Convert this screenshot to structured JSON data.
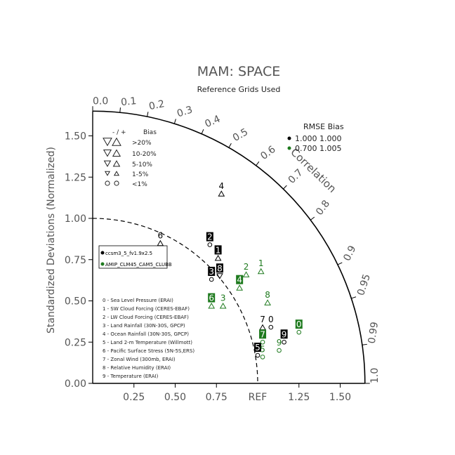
{
  "chart_data": {
    "type": "taylor",
    "title": "MAM: SPACE",
    "subtitle": "Reference Grids Used",
    "ylabel": "Standardized Deviations (Normalized)",
    "arc_label": "Correlation",
    "ref_label": "REF",
    "sd_range": [
      0,
      1.65
    ],
    "x_ticks": [
      "0.25",
      "0.50",
      "0.75",
      "1.25",
      "1.50"
    ],
    "x_tick_values": [
      0.25,
      0.5,
      0.75,
      1.25,
      1.5
    ],
    "y_ticks": [
      "0.00",
      "0.25",
      "0.50",
      "0.75",
      "1.00",
      "1.25",
      "1.50"
    ],
    "y_tick_values": [
      0,
      0.25,
      0.5,
      0.75,
      1.0,
      1.25,
      1.5
    ],
    "corr_ticks": [
      {
        "value": 0.0,
        "label": "0.0"
      },
      {
        "value": 0.1,
        "label": "0.1"
      },
      {
        "value": 0.2,
        "label": "0.2"
      },
      {
        "value": 0.3,
        "label": "0.3"
      },
      {
        "value": 0.4,
        "label": "0.4"
      },
      {
        "value": 0.5,
        "label": "0.5"
      },
      {
        "value": 0.6,
        "label": "0.6"
      },
      {
        "value": 0.7,
        "label": "0.7"
      },
      {
        "value": 0.8,
        "label": "0.8"
      },
      {
        "value": 0.9,
        "label": "0.9"
      },
      {
        "value": 0.95,
        "label": "0.95"
      },
      {
        "value": 0.99,
        "label": "0.99"
      },
      {
        "value": 1.0,
        "label": "1.0"
      }
    ],
    "rmse_bias": {
      "header": "RMSE  Bias",
      "rows": [
        {
          "color": "#000000",
          "text": "1.000 1.000"
        },
        {
          "color": "#1e7a1e",
          "text": "0.700 1.005"
        }
      ]
    },
    "bias_legend": {
      "header_sign": "-  /  +",
      "header_label": "Bias",
      "rows": [
        {
          "size": "large",
          "label": ">20%"
        },
        {
          "size": "medium",
          "label": "10-20%"
        },
        {
          "size": "small",
          "label": "5-10%"
        },
        {
          "size": "tiny",
          "label": "1-5%"
        },
        {
          "size": "circle",
          "label": "<1%"
        }
      ]
    },
    "case_legend": [
      {
        "color": "#000000",
        "name": "ccsm3_5_fv1.9x2.5"
      },
      {
        "color": "#1e7a1e",
        "name": "AMIP_CLM45_CAM5_CLUBB"
      }
    ],
    "variables": [
      "0 - Sea Level Pressure (ERAI)",
      "1 - SW Cloud Forcing (CERES-EBAF)",
      "2 - LW Cloud Forcing (CERES-EBAF)",
      "3 - Land Rainfall (30N-30S, GPCP)",
      "4 - Ocean Rainfall (30N-30S, GPCP)",
      "5 - Land 2-m Temperature (Willmott)",
      "6 - Pacific Surface Stress (5N-5S,ERS)",
      "7 - Zonal Wind (300mb, ERAI)",
      "8 - Relative Humidity (ERAI)",
      "9 - Temperature (ERAI)"
    ],
    "series": [
      {
        "color": "#000000",
        "points": [
          {
            "id": "0",
            "x": 1.08,
            "y": 0.34,
            "marker": "circle",
            "boxed": false
          },
          {
            "id": "1",
            "x": 0.76,
            "y": 0.76,
            "marker": "tri-up",
            "boxed": true
          },
          {
            "id": "2",
            "x": 0.71,
            "y": 0.84,
            "marker": "circle",
            "boxed": true
          },
          {
            "id": "3",
            "x": 0.72,
            "y": 0.63,
            "marker": "circle",
            "boxed": true
          },
          {
            "id": "4",
            "x": 0.78,
            "y": 1.15,
            "marker": "tri-up",
            "boxed": false
          },
          {
            "id": "5",
            "x": 1.0,
            "y": 0.17,
            "marker": "circle",
            "boxed": true
          },
          {
            "id": "6",
            "x": 0.41,
            "y": 0.85,
            "marker": "tri-up",
            "boxed": false
          },
          {
            "id": "7",
            "x": 1.03,
            "y": 0.34,
            "marker": "tri-up",
            "boxed": false
          },
          {
            "id": "8",
            "x": 0.77,
            "y": 0.65,
            "marker": "tri-down",
            "boxed": true
          },
          {
            "id": "9",
            "x": 1.16,
            "y": 0.25,
            "marker": "circle",
            "boxed": true
          }
        ]
      },
      {
        "color": "#1e7a1e",
        "points": [
          {
            "id": "0",
            "x": 1.25,
            "y": 0.31,
            "marker": "circle",
            "boxed": true
          },
          {
            "id": "1",
            "x": 1.02,
            "y": 0.68,
            "marker": "tri-up",
            "boxed": false
          },
          {
            "id": "2",
            "x": 0.93,
            "y": 0.66,
            "marker": "tri-up",
            "boxed": false
          },
          {
            "id": "3",
            "x": 0.79,
            "y": 0.47,
            "marker": "tri-up",
            "boxed": false
          },
          {
            "id": "4",
            "x": 0.89,
            "y": 0.58,
            "marker": "tri-up",
            "boxed": true
          },
          {
            "id": "5",
            "x": 1.03,
            "y": 0.16,
            "marker": "circle",
            "boxed": false
          },
          {
            "id": "6",
            "x": 0.72,
            "y": 0.47,
            "marker": "tri-up",
            "boxed": true
          },
          {
            "id": "7",
            "x": 1.03,
            "y": 0.25,
            "marker": "circle",
            "boxed": true
          },
          {
            "id": "8",
            "x": 1.06,
            "y": 0.49,
            "marker": "tri-up",
            "boxed": false
          },
          {
            "id": "9",
            "x": 1.13,
            "y": 0.2,
            "marker": "circle",
            "boxed": false
          }
        ]
      }
    ]
  }
}
